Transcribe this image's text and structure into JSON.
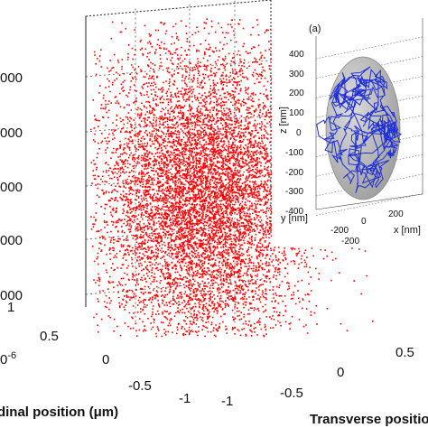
{
  "chart_data": [
    {
      "type": "scatter",
      "projection": "3d",
      "marker_color": "#ff0000",
      "xlabel": "Transverse position",
      "ylabel": "Longitudinal position (μm)",
      "x_ticks": [
        "-1",
        "-0.5",
        "0",
        "0.5"
      ],
      "y_ticks": [
        "1",
        "0.5",
        "0",
        "-0.5",
        "-1"
      ],
      "z_ticks": [
        "000",
        "000",
        "000",
        "000",
        "000"
      ],
      "exponent_label": "0",
      "exponent_power": "-6",
      "xlim": [
        -1,
        1
      ],
      "ylim": [
        -1,
        1
      ],
      "grid": true,
      "point_count_estimate": 16000,
      "distribution": "dense cloud of points filling the lower/central region of the 3D box"
    },
    {
      "type": "line",
      "projection": "3d",
      "panel_label": "(a)",
      "line_color": "#1f2fd6",
      "ellipsoid_color": "#b9b9b9",
      "xlabel": "x [nm]",
      "ylabel": "y [nm]",
      "zlabel": "z [nm]",
      "z_ticks": [
        "400",
        "300",
        "200",
        "100",
        "0",
        "-100",
        "-200",
        "-300",
        "-400"
      ],
      "x_ticks": [
        "-200",
        "0",
        "200"
      ],
      "y_ticks": [
        "-200"
      ],
      "zlim": [
        -400,
        400
      ],
      "grid": true
    }
  ]
}
